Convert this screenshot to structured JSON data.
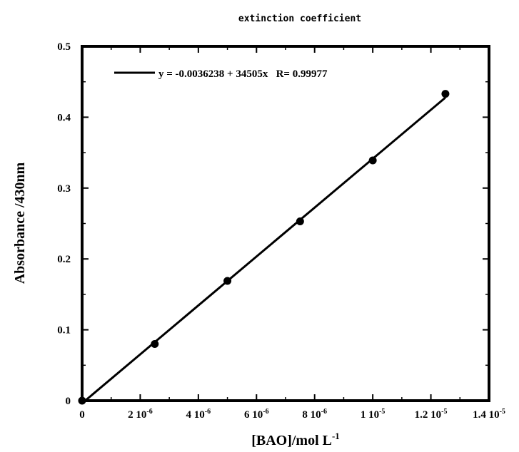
{
  "chart_data": {
    "type": "scatter",
    "title": "extinction coefficient",
    "xlabel": {
      "base": "[BAO]/mol L",
      "sup": "-1"
    },
    "ylabel": "Absorbance /430nm",
    "xlim": [
      0,
      1.4e-05
    ],
    "ylim": [
      0,
      0.5
    ],
    "grid": false,
    "x_ticks": [
      {
        "value": 0,
        "base": "0",
        "sup": ""
      },
      {
        "value": 2e-06,
        "base": "2 10",
        "sup": "-6"
      },
      {
        "value": 4e-06,
        "base": "4 10",
        "sup": "-6"
      },
      {
        "value": 6e-06,
        "base": "6 10",
        "sup": "-6"
      },
      {
        "value": 8e-06,
        "base": "8 10",
        "sup": "-6"
      },
      {
        "value": 1e-05,
        "base": "1 10",
        "sup": "-5"
      },
      {
        "value": 1.2e-05,
        "base": "1.2 10",
        "sup": "-5"
      },
      {
        "value": 1.4e-05,
        "base": "1.4 10",
        "sup": "-5"
      }
    ],
    "y_ticks": [
      {
        "value": 0,
        "label": "0"
      },
      {
        "value": 0.1,
        "label": "0.1"
      },
      {
        "value": 0.2,
        "label": "0.2"
      },
      {
        "value": 0.3,
        "label": "0.3"
      },
      {
        "value": 0.4,
        "label": "0.4"
      },
      {
        "value": 0.5,
        "label": "0.5"
      }
    ],
    "series": [
      {
        "x": [
          0,
          2.5e-06,
          5e-06,
          7.5e-06,
          1e-05,
          1.25e-05
        ],
        "y": [
          0,
          0.08,
          0.169,
          0.253,
          0.339,
          0.433
        ],
        "color": "#000000"
      }
    ],
    "fit": {
      "intercept": -0.0036238,
      "slope": 34505,
      "x_range": [
        0,
        1.25e-05
      ],
      "legend_text": "y = -0.0036238 + 34505x   R= 0.99977"
    },
    "legend_position": "top-left"
  }
}
